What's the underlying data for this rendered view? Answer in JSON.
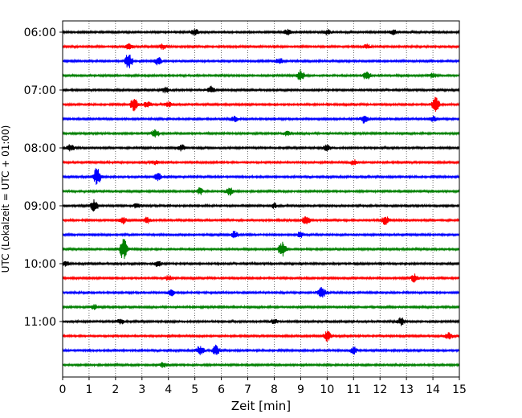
{
  "chart_data": {
    "type": "line",
    "title": "",
    "xlabel": "Zeit  [min]",
    "ylabel": "UTC (Lokalzeit = UTC + 01:00)",
    "xlim": [
      0,
      15
    ],
    "xticks": [
      0,
      1,
      2,
      3,
      4,
      5,
      6,
      7,
      8,
      9,
      10,
      11,
      12,
      13,
      14,
      15
    ],
    "grid": "x-dotted",
    "trace_interval_minutes": 15,
    "trace_colors": [
      "#000000",
      "#ff0000",
      "#0000ff",
      "#008000"
    ],
    "y_tick_labels": [
      "06:00",
      "07:00",
      "08:00",
      "09:00",
      "10:00",
      "11:00"
    ],
    "traces": [
      {
        "start": "06:00",
        "color": "#000000",
        "events": [
          [
            5.0,
            0.6
          ],
          [
            8.5,
            0.6
          ],
          [
            10.0,
            0.5
          ],
          [
            12.5,
            0.6
          ]
        ]
      },
      {
        "start": "06:15",
        "color": "#ff0000",
        "events": [
          [
            2.5,
            0.5
          ],
          [
            3.8,
            0.6
          ],
          [
            11.5,
            0.5
          ]
        ]
      },
      {
        "start": "06:30",
        "color": "#0000ff",
        "events": [
          [
            2.5,
            1.6
          ],
          [
            3.6,
            0.8
          ],
          [
            8.2,
            0.6
          ]
        ]
      },
      {
        "start": "06:45",
        "color": "#008000",
        "events": [
          [
            9.0,
            1.1
          ],
          [
            11.5,
            1.0
          ],
          [
            14.0,
            0.5
          ]
        ]
      },
      {
        "start": "07:00",
        "color": "#000000",
        "events": [
          [
            3.9,
            0.6
          ],
          [
            5.6,
            0.7
          ]
        ]
      },
      {
        "start": "07:15",
        "color": "#ff0000",
        "events": [
          [
            2.7,
            1.3
          ],
          [
            3.2,
            0.6
          ],
          [
            4.0,
            0.5
          ],
          [
            14.1,
            1.5
          ]
        ]
      },
      {
        "start": "07:30",
        "color": "#0000ff",
        "events": [
          [
            6.5,
            0.5
          ],
          [
            11.4,
            0.8
          ],
          [
            14.0,
            0.5
          ]
        ]
      },
      {
        "start": "07:45",
        "color": "#008000",
        "events": [
          [
            3.5,
            1.0
          ],
          [
            8.5,
            0.5
          ]
        ]
      },
      {
        "start": "08:00",
        "color": "#000000",
        "events": [
          [
            0.3,
            0.7
          ],
          [
            4.5,
            0.6
          ],
          [
            10.0,
            0.6
          ]
        ]
      },
      {
        "start": "08:15",
        "color": "#ff0000",
        "events": [
          [
            3.5,
            0.4
          ],
          [
            11.0,
            0.5
          ]
        ]
      },
      {
        "start": "08:30",
        "color": "#0000ff",
        "events": [
          [
            1.3,
            1.8
          ],
          [
            3.6,
            0.7
          ]
        ]
      },
      {
        "start": "08:45",
        "color": "#008000",
        "events": [
          [
            5.2,
            0.7
          ],
          [
            6.3,
            0.8
          ]
        ]
      },
      {
        "start": "09:00",
        "color": "#000000",
        "events": [
          [
            1.2,
            1.2
          ],
          [
            2.8,
            0.5
          ],
          [
            8.0,
            0.5
          ]
        ]
      },
      {
        "start": "09:15",
        "color": "#ff0000",
        "events": [
          [
            2.3,
            0.8
          ],
          [
            3.2,
            0.6
          ],
          [
            9.2,
            1.0
          ],
          [
            12.2,
            0.9
          ]
        ]
      },
      {
        "start": "09:30",
        "color": "#0000ff",
        "events": [
          [
            6.5,
            0.7
          ],
          [
            9.0,
            0.6
          ]
        ]
      },
      {
        "start": "09:45",
        "color": "#008000",
        "events": [
          [
            2.3,
            2.2
          ],
          [
            8.3,
            1.6
          ]
        ]
      },
      {
        "start": "10:00",
        "color": "#000000",
        "events": [
          [
            0.1,
            0.5
          ],
          [
            3.6,
            0.6
          ]
        ]
      },
      {
        "start": "10:15",
        "color": "#ff0000",
        "events": [
          [
            4.0,
            0.5
          ],
          [
            13.3,
            0.8
          ]
        ]
      },
      {
        "start": "10:30",
        "color": "#0000ff",
        "events": [
          [
            4.1,
            0.6
          ],
          [
            9.8,
            1.2
          ]
        ]
      },
      {
        "start": "10:45",
        "color": "#008000",
        "events": [
          [
            1.2,
            0.5
          ]
        ]
      },
      {
        "start": "11:00",
        "color": "#000000",
        "events": [
          [
            2.2,
            0.6
          ],
          [
            8.0,
            0.6
          ],
          [
            12.8,
            0.8
          ]
        ]
      },
      {
        "start": "11:15",
        "color": "#ff0000",
        "events": [
          [
            10.0,
            1.0
          ],
          [
            14.6,
            0.7
          ]
        ]
      },
      {
        "start": "11:30",
        "color": "#0000ff",
        "events": [
          [
            5.2,
            1.0
          ],
          [
            5.8,
            1.0
          ],
          [
            11.0,
            0.8
          ]
        ]
      },
      {
        "start": "11:45",
        "color": "#008000",
        "events": [
          [
            3.8,
            0.5
          ]
        ]
      }
    ]
  }
}
